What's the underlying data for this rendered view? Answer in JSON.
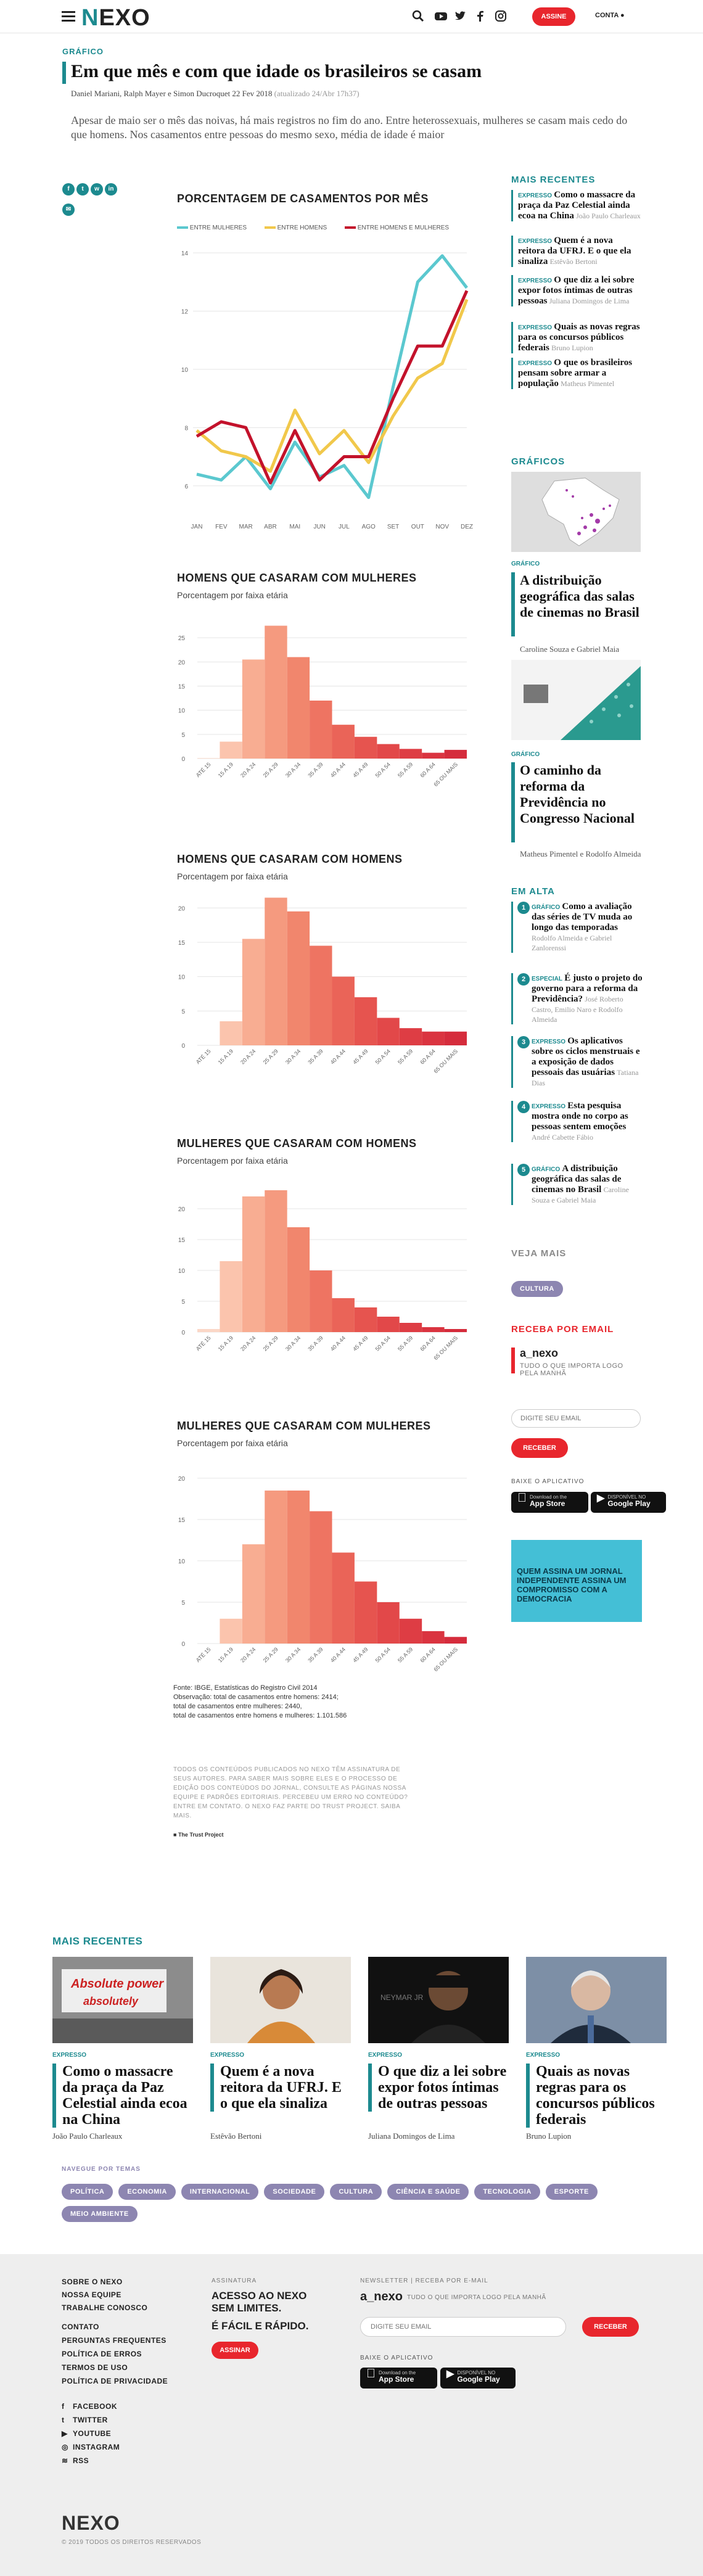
{
  "header": {
    "logo_prefix": "N",
    "logo_rest": "EXO",
    "assine": "ASSINE",
    "conta": "CONTA"
  },
  "article": {
    "kicker": "GRÁFICO",
    "title": "Em que mês e com que idade os brasileiros se casam",
    "byline": "Daniel Mariani, Ralph Mayer e Simon Ducroquet 22 Fev 2018",
    "updated": "(atualizado 24/Abr 17h37)",
    "lead": "Apesar de maio ser o mês das noivas, há mais registros no fim do ano. Entre heterossexuais, mulheres se casam mais cedo do que homens. Nos casamentos entre pessoas do mesmo sexo, média de idade é maior"
  },
  "share": [
    "f",
    "t",
    "w",
    "in",
    "✉"
  ],
  "line_chart": {
    "title": "PORCENTAGEM DE CASAMENTOS POR MÊS",
    "colors": {
      "mulheres": "#5bc8cf",
      "homens": "#f1c84b",
      "hetero": "#c3122b"
    },
    "chart_data": {
      "type": "line",
      "x": [
        "JAN",
        "FEV",
        "MAR",
        "ABR",
        "MAI",
        "JUN",
        "JUL",
        "AGO",
        "SET",
        "OUT",
        "NOV",
        "DEZ"
      ],
      "ylim": [
        5,
        14
      ],
      "yticks": [
        6,
        8,
        10,
        12,
        14
      ],
      "series": [
        {
          "name": "ENTRE MULHERES",
          "values": [
            6.4,
            6.2,
            7.0,
            5.9,
            7.5,
            6.3,
            6.7,
            5.6,
            9.4,
            13.0,
            13.9,
            12.8
          ]
        },
        {
          "name": "ENTRE HOMENS",
          "values": [
            7.9,
            7.2,
            7.0,
            6.5,
            8.6,
            7.1,
            7.9,
            6.8,
            8.4,
            9.7,
            10.2,
            12.4
          ]
        },
        {
          "name": "ENTRE HOMENS E MULHERES",
          "values": [
            7.7,
            8.2,
            8.0,
            6.1,
            7.9,
            6.2,
            7.0,
            7.0,
            9.0,
            10.8,
            10.8,
            12.7
          ]
        }
      ]
    }
  },
  "bar_charts": [
    {
      "title": "HOMENS QUE CASARAM COM MULHERES",
      "subtitle": "Porcentagem por faixa etária",
      "chart_data": {
        "type": "bar",
        "categories": [
          "ATÉ 15",
          "15 A 19",
          "20 A 24",
          "25 A 29",
          "30 A 34",
          "35 A 39",
          "40 A 44",
          "45 A 49",
          "50 A 54",
          "55 A 59",
          "60 A 64",
          "65 OU MAIS"
        ],
        "values": [
          0.1,
          3.5,
          20.5,
          27.5,
          21.0,
          12.0,
          7.0,
          4.5,
          3.0,
          2.0,
          1.2,
          1.8
        ],
        "ylim": [
          0,
          30
        ],
        "yticks": [
          0,
          5,
          10,
          15,
          20,
          25
        ]
      }
    },
    {
      "title": "HOMENS QUE CASARAM COM HOMENS",
      "subtitle": "Porcentagem por faixa etária",
      "chart_data": {
        "type": "bar",
        "categories": [
          "ATÉ 15",
          "15 A 19",
          "20 A 24",
          "25 A 29",
          "30 A 34",
          "35 A 39",
          "40 A 44",
          "45 A 49",
          "50 A 54",
          "55 A 59",
          "60 A 64",
          "65 OU MAIS"
        ],
        "values": [
          0,
          3.5,
          15.5,
          21.5,
          19.5,
          14.5,
          10.0,
          7.0,
          4.0,
          2.5,
          2.0,
          2.0
        ],
        "ylim": [
          0,
          22
        ],
        "yticks": [
          0,
          5,
          10,
          15,
          20
        ]
      }
    },
    {
      "title": "MULHERES QUE CASARAM COM HOMENS",
      "subtitle": "Porcentagem por faixa etária",
      "chart_data": {
        "type": "bar",
        "categories": [
          "ATÉ 15",
          "15 A 19",
          "20 A 24",
          "25 A 29",
          "30 A 34",
          "35 A 39",
          "40 A 44",
          "45 A 49",
          "50 A 54",
          "55 A 59",
          "60 A 64",
          "65 OU MAIS"
        ],
        "values": [
          0.5,
          11.5,
          22.0,
          23.0,
          17.0,
          10.0,
          5.5,
          4.0,
          2.5,
          1.5,
          0.8,
          0.5
        ],
        "ylim": [
          0,
          25
        ],
        "yticks": [
          0,
          5,
          10,
          15,
          20
        ]
      }
    },
    {
      "title": "MULHERES QUE CASARAM COM MULHERES",
      "subtitle": "Porcentagem por faixa etária",
      "chart_data": {
        "type": "bar",
        "categories": [
          "ATÉ 15",
          "15 A 19",
          "20 A 24",
          "25 A 29",
          "30 A 34",
          "35 A 39",
          "40 A 44",
          "45 A 49",
          "50 A 54",
          "55 A 59",
          "60 A 64",
          "65 OU MAIS"
        ],
        "values": [
          0,
          3.0,
          12.0,
          18.5,
          18.5,
          16.0,
          11.0,
          7.5,
          5.0,
          3.0,
          1.5,
          0.8
        ],
        "ylim": [
          0,
          22
        ],
        "yticks": [
          0,
          5,
          10,
          15,
          20
        ]
      }
    }
  ],
  "footnote": {
    "source": "Fonte: IBGE, Estatísticas do Registro Civil 2014",
    "obs": "Observação: total de casamentos entre homens: 2414;",
    "women": "total de casamentos entre mulheres: 2440,",
    "hetero": "total de casamentos entre homens e mulheres: 1.101.586"
  },
  "rights_text": "TODOS OS CONTEÚDOS PUBLICADOS NO NEXO TÊM ASSINATURA DE SEUS AUTORES. PARA SABER MAIS SOBRE ELES E O PROCESSO DE EDIÇÃO DOS CONTEÚDOS DO JORNAL, CONSULTE AS PÁGINAS NOSSA EQUIPE E PADRÕES EDITORIAIS. PERCEBEU UM ERRO NO CONTEÚDO? ENTRE EM CONTATO. O NEXO FAZ PARTE DO TRUST PROJECT. SAIBA MAIS.",
  "trust": "The Trust Project",
  "sidebar": {
    "mais_recentes": "MAIS RECENTES",
    "recent": [
      {
        "tag": "EXPRESSO",
        "title": "Como o massacre da praça da Paz Celestial ainda ecoa na China",
        "author": "João Paulo Charleaux"
      },
      {
        "tag": "EXPRESSO",
        "title": "Quem é a nova reitora da UFRJ. E o que ela sinaliza",
        "author": "Estêvão Bertoni"
      },
      {
        "tag": "EXPRESSO",
        "title": "O que diz a lei sobre expor fotos íntimas de outras pessoas",
        "author": "Juliana Domingos de Lima"
      },
      {
        "tag": "EXPRESSO",
        "title": "Quais as novas regras para os concursos públicos federais",
        "author": "Bruno Lupion"
      },
      {
        "tag": "EXPRESSO",
        "title": "O que os brasileiros pensam sobre armar a população",
        "author": "Matheus Pimentel"
      }
    ],
    "graficos": "GRÁFICOS",
    "graphic_cards": [
      {
        "tag": "GRÁFICO",
        "title": "A distribuição geográfica das salas de cinemas no Brasil",
        "author": "Caroline Souza e Gabriel Maia"
      },
      {
        "tag": "GRÁFICO",
        "title": "O caminho da reforma da Previdência no Congresso Nacional",
        "author": "Matheus Pimentel e Rodolfo Almeida"
      }
    ],
    "em_alta": "EM ALTA",
    "trending": [
      {
        "n": "1",
        "tag": "GRÁFICO",
        "title": "Como a avaliação das séries de TV muda ao longo das temporadas",
        "author": "Rodolfo Almeida e Gabriel Zanlorenssi"
      },
      {
        "n": "2",
        "tag": "ESPECIAL",
        "title": "É justo o projeto do governo para a reforma da Previdência?",
        "author": "José Roberto Castro, Emilio Naro e Rodolfo Almeida"
      },
      {
        "n": "3",
        "tag": "EXPRESSO",
        "title": "Os aplicativos sobre os ciclos menstruais e a exposição de dados pessoais das usuárias",
        "author": "Tatiana Dias"
      },
      {
        "n": "4",
        "tag": "EXPRESSO",
        "title": "Esta pesquisa mostra onde no corpo as pessoas sentem emoções",
        "author": "André Cabette Fábio"
      },
      {
        "n": "5",
        "tag": "GRÁFICO",
        "title": "A distribuição geográfica das salas de cinemas no Brasil",
        "author": "Caroline Souza e Gabriel Maia"
      }
    ],
    "veja_mais": "VEJA MAIS",
    "veja_tag": "CULTURA",
    "email_h": "RECEBA POR EMAIL",
    "email_brand": "a_nexo",
    "email_desc": "TUDO O QUE IMPORTA LOGO PELA MANHÃ",
    "email_placeholder": "DIGITE SEU EMAIL",
    "receber": "RECEBER",
    "baixe": "BAIXE O APLICATIVO",
    "appstore_small": "Download on the",
    "appstore": "App Store",
    "gplay_small": "DISPONÍVEL NO",
    "gplay": "Google Play",
    "promo": "QUEM ASSINA UM JORNAL INDEPENDENTE ASSINA UM COMPROMISSO COM A DEMOCRACIA"
  },
  "bottom": {
    "heading": "MAIS RECENTES",
    "cards": [
      {
        "tag": "EXPRESSO",
        "title": "Como o massacre da praça da Paz Celestial ainda ecoa na China",
        "author": "João Paulo Charleaux"
      },
      {
        "tag": "EXPRESSO",
        "title": "Quem é a nova reitora da UFRJ. E o que ela sinaliza",
        "author": "Estêvão Bertoni"
      },
      {
        "tag": "EXPRESSO",
        "title": "O que diz a lei sobre expor fotos íntimas de outras pessoas",
        "author": "Juliana Domingos de Lima"
      },
      {
        "tag": "EXPRESSO",
        "title": "Quais as novas regras para os concursos públicos federais",
        "author": "Bruno Lupion"
      }
    ],
    "navegue": "NAVEGUE POR TEMAS",
    "topics": [
      "POLÍTICA",
      "ECONOMIA",
      "INTERNACIONAL",
      "SOCIEDADE",
      "CULTURA",
      "CIÊNCIA E SAÚDE",
      "TECNOLOGIA",
      "ESPORTE",
      "MEIO AMBIENTE"
    ]
  },
  "footer": {
    "links": [
      "SOBRE O NEXO",
      "NOSSA EQUIPE",
      "TRABALHE CONOSCO",
      "CONTATO",
      "PERGUNTAS FREQUENTES",
      "POLÍTICA DE ERROS",
      "TERMOS DE USO",
      "POLÍTICA DE PRIVACIDADE"
    ],
    "social": [
      "FACEBOOK",
      "TWITTER",
      "YOUTUBE",
      "INSTAGRAM",
      "RSS"
    ],
    "assinatura": "ASSINATURA",
    "assin_1": "ACESSO AO NEXO SEM LIMITES.",
    "assin_2": "É FÁCIL E RÁPIDO.",
    "assinar": "ASSINAR",
    "newsletter": "NEWSLETTER | RECEBA POR E-MAIL",
    "brand": "a_nexo",
    "brand_desc": "TUDO O QUE IMPORTA LOGO PELA MANHÃ",
    "email_placeholder": "DIGITE SEU EMAIL",
    "receber": "RECEBER",
    "baixe": "BAIXE O APLICATIVO",
    "logo": "NEXO",
    "copyright": "© 2019 TODOS OS DIREITOS RESERVADOS"
  }
}
